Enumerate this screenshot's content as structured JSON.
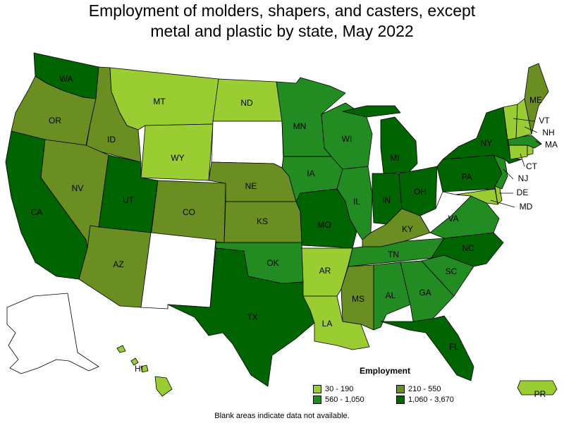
{
  "title_line1": "Employment of molders, shapers, and casters, except",
  "title_line2": "metal and plastic by state, May 2022",
  "legend": {
    "title": "Employment",
    "items": [
      {
        "label": "30 - 190",
        "color": "#9acd32"
      },
      {
        "label": "210 - 550",
        "color": "#6b8e23"
      },
      {
        "label": "560 - 1,050",
        "color": "#228b22"
      },
      {
        "label": "1,060 - 3,670",
        "color": "#006400"
      }
    ]
  },
  "footnote": "Blank areas indicate data not available.",
  "colors": {
    "c1": "#9acd32",
    "c2": "#6b8e23",
    "c3": "#228b22",
    "c4": "#006400",
    "na": "#ffffff"
  },
  "states": [
    {
      "code": "WA",
      "cls": "c4"
    },
    {
      "code": "OR",
      "cls": "c2"
    },
    {
      "code": "CA",
      "cls": "c4"
    },
    {
      "code": "ID",
      "cls": "c2"
    },
    {
      "code": "NV",
      "cls": "c2"
    },
    {
      "code": "MT",
      "cls": "c1"
    },
    {
      "code": "WY",
      "cls": "c1"
    },
    {
      "code": "UT",
      "cls": "c4"
    },
    {
      "code": "AZ",
      "cls": "c2"
    },
    {
      "code": "CO",
      "cls": "c2"
    },
    {
      "code": "NM",
      "cls": "na"
    },
    {
      "code": "ND",
      "cls": "c1"
    },
    {
      "code": "SD",
      "cls": "na"
    },
    {
      "code": "NE",
      "cls": "c2"
    },
    {
      "code": "KS",
      "cls": "c2"
    },
    {
      "code": "OK",
      "cls": "c3"
    },
    {
      "code": "TX",
      "cls": "c4"
    },
    {
      "code": "MN",
      "cls": "c3"
    },
    {
      "code": "IA",
      "cls": "c3"
    },
    {
      "code": "MO",
      "cls": "c4"
    },
    {
      "code": "AR",
      "cls": "c1"
    },
    {
      "code": "LA",
      "cls": "c1"
    },
    {
      "code": "WI",
      "cls": "c3"
    },
    {
      "code": "IL",
      "cls": "c3"
    },
    {
      "code": "MI",
      "cls": "c4"
    },
    {
      "code": "IN",
      "cls": "c4"
    },
    {
      "code": "OH",
      "cls": "c4"
    },
    {
      "code": "KY",
      "cls": "c2"
    },
    {
      "code": "TN",
      "cls": "c3"
    },
    {
      "code": "MS",
      "cls": "c2"
    },
    {
      "code": "AL",
      "cls": "c3"
    },
    {
      "code": "GA",
      "cls": "c3"
    },
    {
      "code": "FL",
      "cls": "c4"
    },
    {
      "code": "SC",
      "cls": "c3"
    },
    {
      "code": "NC",
      "cls": "c4"
    },
    {
      "code": "VA",
      "cls": "c3"
    },
    {
      "code": "WV",
      "cls": "na"
    },
    {
      "code": "PA",
      "cls": "c4"
    },
    {
      "code": "NY",
      "cls": "c4"
    },
    {
      "code": "VT",
      "cls": "c1"
    },
    {
      "code": "NH",
      "cls": "c1"
    },
    {
      "code": "ME",
      "cls": "c2"
    },
    {
      "code": "MA",
      "cls": "c3"
    },
    {
      "code": "CT",
      "cls": "c1"
    },
    {
      "code": "RI",
      "cls": "c1"
    },
    {
      "code": "NJ",
      "cls": "c3"
    },
    {
      "code": "DE",
      "cls": "c1"
    },
    {
      "code": "MD",
      "cls": "c1"
    },
    {
      "code": "AK",
      "cls": "na"
    },
    {
      "code": "HI",
      "cls": "c1"
    },
    {
      "code": "PR",
      "cls": "c1"
    }
  ]
}
